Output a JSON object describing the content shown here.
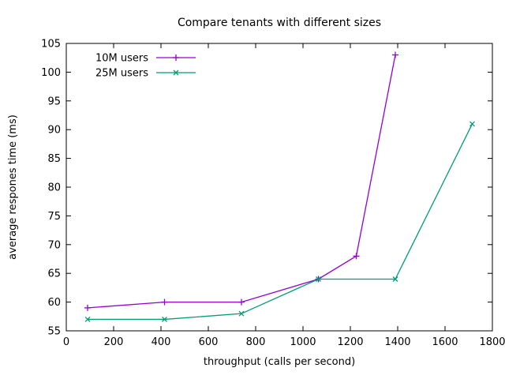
{
  "chart_data": {
    "type": "line",
    "title": "Compare tenants with different sizes",
    "xlabel": "throughput (calls per second)",
    "ylabel": "average respones time (ms)",
    "xlim": [
      0,
      1800
    ],
    "ylim": [
      55,
      105
    ],
    "xticks": [
      0,
      200,
      400,
      600,
      800,
      1000,
      1200,
      1400,
      1600,
      1800
    ],
    "yticks": [
      55,
      60,
      65,
      70,
      75,
      80,
      85,
      90,
      95,
      100,
      105
    ],
    "grid": false,
    "legend_position": "inside-top-left",
    "background_color": "#ffffff",
    "border_color": "#000000",
    "series": [
      {
        "name": "10M users",
        "color": "#9400d3",
        "marker": "plus",
        "points": [
          [
            90,
            59
          ],
          [
            415,
            60
          ],
          [
            740,
            60
          ],
          [
            1065,
            64
          ],
          [
            1225,
            68
          ],
          [
            1390,
            103
          ]
        ]
      },
      {
        "name": "25M users",
        "color": "#009e73",
        "marker": "cross",
        "points": [
          [
            90,
            57
          ],
          [
            415,
            57
          ],
          [
            740,
            58
          ],
          [
            1065,
            64
          ],
          [
            1390,
            64
          ],
          [
            1715,
            91
          ]
        ]
      }
    ]
  }
}
